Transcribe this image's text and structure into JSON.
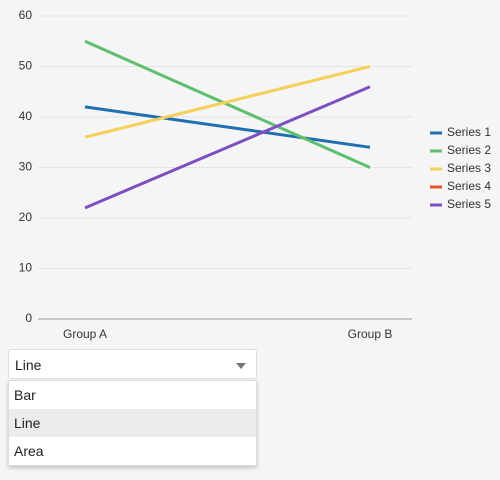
{
  "chart_data": {
    "type": "line",
    "categories": [
      "Group A",
      "Group B"
    ],
    "series": [
      {
        "name": "Series 1",
        "color": "#1f6fb2",
        "values": [
          42,
          34
        ]
      },
      {
        "name": "Series 2",
        "color": "#5fbf6f",
        "values": [
          55,
          30
        ]
      },
      {
        "name": "Series 3",
        "color": "#f5d05a",
        "values": [
          36,
          50
        ]
      },
      {
        "name": "Series 4",
        "color": "#e8542a",
        "values": [
          null,
          null
        ]
      },
      {
        "name": "Series 5",
        "color": "#7e4fc0",
        "values": [
          22,
          46
        ]
      }
    ],
    "ylim": [
      0,
      60
    ],
    "yticks": [
      0,
      10,
      20,
      30,
      40,
      50,
      60
    ],
    "grid": true,
    "legend": "right"
  },
  "dropdown": {
    "selected": "Line",
    "options": [
      "Bar",
      "Line",
      "Area"
    ]
  }
}
